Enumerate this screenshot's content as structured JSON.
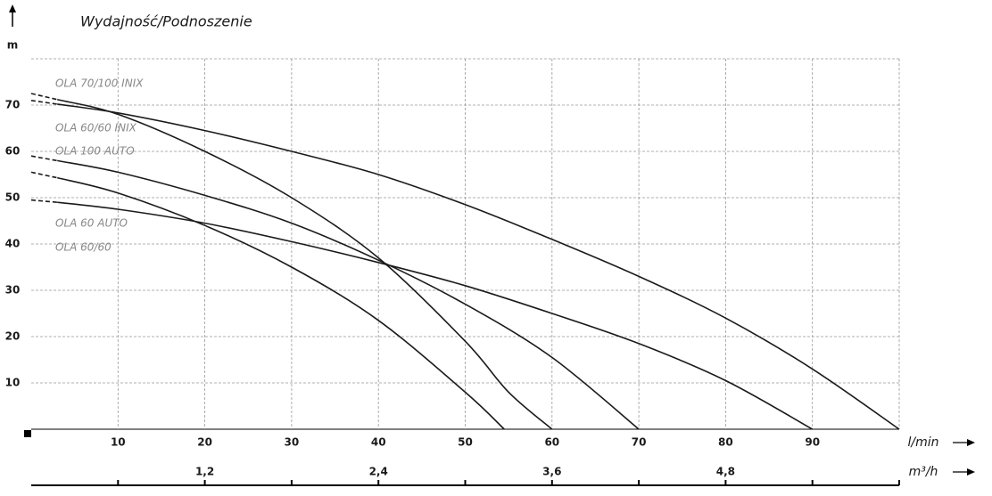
{
  "chart_data": {
    "type": "line",
    "title": "Wydajność/Podnoszenie",
    "y_label": "m",
    "x_label": "l/min",
    "x2_label": "m³/h",
    "xlim": [
      0,
      100
    ],
    "xticks": [
      10,
      20,
      30,
      40,
      50,
      60,
      70,
      80,
      90
    ],
    "ylim": [
      0,
      80
    ],
    "yticks": [
      10,
      20,
      30,
      40,
      50,
      60,
      70
    ],
    "x2lim": [
      0,
      6
    ],
    "x2ticks": [
      {
        "value": 1.2,
        "label": "1,2"
      },
      {
        "value": 2.4,
        "label": "2,4"
      },
      {
        "value": 3.6,
        "label": "3,6"
      },
      {
        "value": 4.8,
        "label": "4,8"
      }
    ],
    "grid": true,
    "series": [
      {
        "name": "OLA 70/100 INIX",
        "color": "#1a1a1a",
        "x": [
          0,
          3,
          10,
          20,
          30,
          40,
          50,
          60,
          70,
          80,
          90,
          100
        ],
        "values": [
          71,
          70.2,
          68.3,
          64.5,
          60,
          55,
          48.5,
          41,
          33,
          24,
          13,
          0
        ]
      },
      {
        "name": "OLA 60/60 INIX",
        "color": "#1a1a1a",
        "x": [
          0,
          3,
          10,
          20,
          30,
          40,
          50,
          55,
          60
        ],
        "values": [
          72.5,
          71.2,
          68,
          60,
          50,
          37,
          19,
          8,
          0
        ]
      },
      {
        "name": "OLA 100 AUTO",
        "color": "#1a1a1a",
        "x": [
          0,
          3,
          10,
          20,
          30,
          40,
          50,
          60,
          70
        ],
        "values": [
          59,
          58,
          55.5,
          50.5,
          44.5,
          36.5,
          27,
          15.5,
          0
        ]
      },
      {
        "name": "OLA 60 AUTO",
        "color": "#1a1a1a",
        "x": [
          0,
          3,
          10,
          20,
          30,
          40,
          50,
          54.5
        ],
        "values": [
          55.5,
          54.3,
          51,
          44,
          35,
          23.5,
          8,
          0
        ]
      },
      {
        "name": "OLA 60/60",
        "color": "#1a1a1a",
        "x": [
          0,
          3,
          10,
          20,
          30,
          40,
          50,
          60,
          70,
          80,
          90
        ],
        "values": [
          49.5,
          49,
          47.5,
          44.5,
          40.5,
          36,
          31,
          25,
          18.5,
          10.5,
          0
        ]
      }
    ]
  }
}
